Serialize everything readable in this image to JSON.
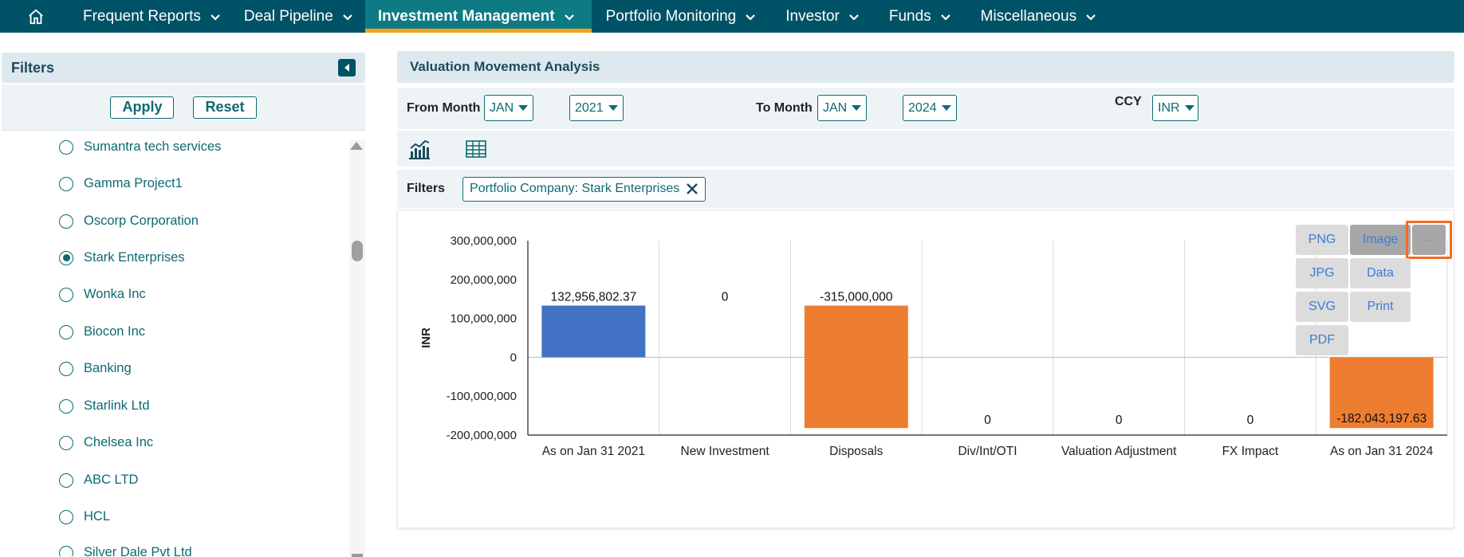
{
  "nav": {
    "items": [
      {
        "label": "Frequent Reports",
        "active": false
      },
      {
        "label": "Deal Pipeline",
        "active": false
      },
      {
        "label": "Investment Management",
        "active": true
      },
      {
        "label": "Portfolio Monitoring",
        "active": false
      },
      {
        "label": "Investor",
        "active": false
      },
      {
        "label": "Funds",
        "active": false
      },
      {
        "label": "Miscellaneous",
        "active": false
      }
    ]
  },
  "sidebar": {
    "title": "Filters",
    "apply_label": "Apply",
    "reset_label": "Reset",
    "items": [
      {
        "label": "Sumantra tech services",
        "selected": false
      },
      {
        "label": "Gamma Project1",
        "selected": false
      },
      {
        "label": "Oscorp Corporation",
        "selected": false
      },
      {
        "label": "Stark Enterprises",
        "selected": true
      },
      {
        "label": "Wonka Inc",
        "selected": false
      },
      {
        "label": "Biocon Inc",
        "selected": false
      },
      {
        "label": "Banking",
        "selected": false
      },
      {
        "label": "Starlink Ltd",
        "selected": false
      },
      {
        "label": "Chelsea Inc",
        "selected": false
      },
      {
        "label": "ABC LTD",
        "selected": false
      },
      {
        "label": "HCL",
        "selected": false
      },
      {
        "label": "Silver Dale Pvt Ltd",
        "selected": false
      }
    ]
  },
  "panel": {
    "title": "Valuation Movement Analysis",
    "from_month_label": "From Month",
    "from_month": "JAN",
    "from_year": "2021",
    "to_month_label": "To Month",
    "to_month": "JAN",
    "to_year": "2024",
    "ccy_label": "CCY",
    "ccy": "INR",
    "filters_label": "Filters",
    "filter_chip": "Portfolio Company: Stark Enterprises"
  },
  "export_menu": {
    "png": "PNG",
    "image": "Image",
    "more": "···",
    "jpg": "JPG",
    "data": "Data",
    "svg": "SVG",
    "print": "Print",
    "pdf": "PDF"
  },
  "colors": {
    "nav_bg": "#005266",
    "nav_active": "#0e7a84",
    "accent": "#f2a31b",
    "bar_blue": "#4472c4",
    "bar_orange": "#ed7d31"
  },
  "chart_data": {
    "type": "bar",
    "ylabel": "INR",
    "ylim": [
      -200000000,
      300000000
    ],
    "yticks": [
      300000000,
      200000000,
      100000000,
      0,
      -100000000,
      -200000000
    ],
    "ytick_labels": [
      "300,000,000",
      "200,000,000",
      "100,000,000",
      "0",
      "-100,000,000",
      "-200,000,000"
    ],
    "categories": [
      "As on Jan 31 2021",
      "New Investment",
      "Disposals",
      "Div/Int/OTI",
      "Valuation Adjustment",
      "FX Impact",
      "As on Jan 31 2024"
    ],
    "bars": [
      {
        "base": 0,
        "top": 132956802.37,
        "label": "132,956,802.37",
        "color": "blue"
      },
      {
        "base": 0,
        "top": 0,
        "label": "0",
        "color": "none"
      },
      {
        "base": 132956802.37,
        "top": -182043197.63,
        "label": "-315,000,000",
        "color": "orange"
      },
      {
        "base": 0,
        "top": 0,
        "label": "0",
        "color": "none"
      },
      {
        "base": 0,
        "top": 0,
        "label": "0",
        "color": "none"
      },
      {
        "base": 0,
        "top": 0,
        "label": "0",
        "color": "none"
      },
      {
        "base": 0,
        "top": -182043197.63,
        "label": "-182,043,197.63",
        "color": "orange"
      }
    ],
    "grid": true
  }
}
